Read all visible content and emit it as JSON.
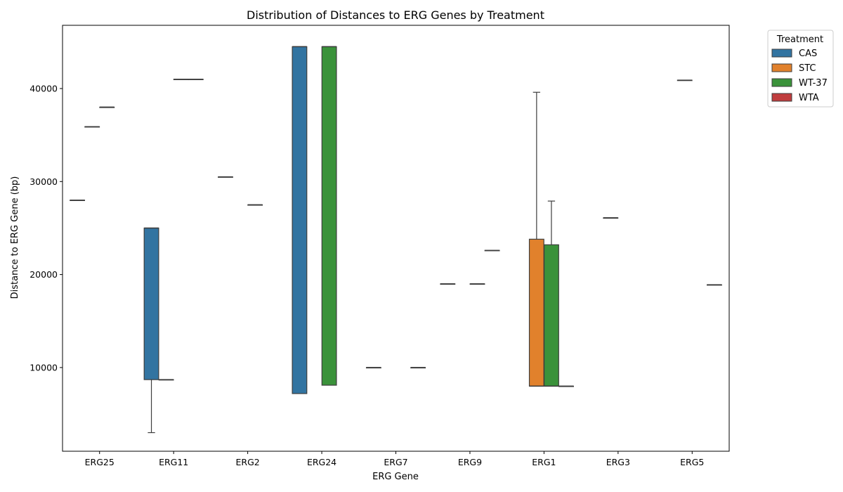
{
  "chart_data": {
    "type": "box",
    "title": "Distribution of Distances to ERG Genes by Treatment",
    "xlabel": "ERG Gene",
    "ylabel": "Distance to ERG Gene (bp)",
    "categories": [
      "ERG25",
      "ERG11",
      "ERG2",
      "ERG24",
      "ERG7",
      "ERG9",
      "ERG1",
      "ERG3",
      "ERG5"
    ],
    "yticks": [
      10000,
      20000,
      30000,
      40000
    ],
    "ylim": [
      1000,
      46800
    ],
    "grid": false,
    "legend": {
      "title": "Treatment",
      "placement": "outside-top-right",
      "entries": [
        {
          "name": "CAS",
          "color": "#3274a1"
        },
        {
          "name": "STC",
          "color": "#e1812c"
        },
        {
          "name": "WT-37",
          "color": "#3a923a"
        },
        {
          "name": "WTA",
          "color": "#c03d3e"
        }
      ]
    },
    "series": [
      {
        "name": "CAS",
        "color": "#3274a1",
        "boxes": [
          {
            "category": "ERG25",
            "min": 28000,
            "q1": 28000,
            "median": 28000,
            "q3": 28000,
            "max": 28000
          },
          {
            "category": "ERG11",
            "min": 3000,
            "q1": 8700,
            "median": 25000,
            "q3": 25000,
            "max": 25000
          },
          {
            "category": "ERG2",
            "min": 30500,
            "q1": 30500,
            "median": 30500,
            "q3": 30500,
            "max": 30500
          },
          {
            "category": "ERG24",
            "min": 7200,
            "q1": 7200,
            "median": 44500,
            "q3": 44500,
            "max": 44500
          },
          {
            "category": "ERG7",
            "min": 10000,
            "q1": 10000,
            "median": 10000,
            "q3": 10000,
            "max": 10000
          },
          {
            "category": "ERG9",
            "min": 19000,
            "q1": 19000,
            "median": 19000,
            "q3": 19000,
            "max": 19000
          }
        ]
      },
      {
        "name": "STC",
        "color": "#e1812c",
        "boxes": [
          {
            "category": "ERG25",
            "min": 35900,
            "q1": 35900,
            "median": 35900,
            "q3": 35900,
            "max": 35900
          },
          {
            "category": "ERG11",
            "min": 8700,
            "q1": 8700,
            "median": 8700,
            "q3": 8700,
            "max": 8700
          },
          {
            "category": "ERG1",
            "min": 8000,
            "q1": 8000,
            "median": 8000,
            "q3": 23800,
            "max": 39600
          },
          {
            "category": "ERG3",
            "min": 26100,
            "q1": 26100,
            "median": 26100,
            "q3": 26100,
            "max": 26100
          },
          {
            "category": "ERG5",
            "min": 40900,
            "q1": 40900,
            "median": 40900,
            "q3": 40900,
            "max": 40900
          }
        ]
      },
      {
        "name": "WT-37",
        "color": "#3a923a",
        "boxes": [
          {
            "category": "ERG25",
            "min": 38000,
            "q1": 38000,
            "median": 38000,
            "q3": 38000,
            "max": 38000
          },
          {
            "category": "ERG11",
            "min": 41000,
            "q1": 41000,
            "median": 41000,
            "q3": 41000,
            "max": 41000
          },
          {
            "category": "ERG2",
            "min": 27500,
            "q1": 27500,
            "median": 27500,
            "q3": 27500,
            "max": 27500
          },
          {
            "category": "ERG24",
            "min": 8100,
            "q1": 8100,
            "median": 44500,
            "q3": 44500,
            "max": 44500
          },
          {
            "category": "ERG9",
            "min": 19000,
            "q1": 19000,
            "median": 19000,
            "q3": 19000,
            "max": 19000
          },
          {
            "category": "ERG1",
            "min": 8000,
            "q1": 8000,
            "median": 8000,
            "q3": 23200,
            "max": 27900
          }
        ]
      },
      {
        "name": "WTA",
        "color": "#c03d3e",
        "boxes": [
          {
            "category": "ERG11",
            "min": 41000,
            "q1": 41000,
            "median": 41000,
            "q3": 41000,
            "max": 41000
          },
          {
            "category": "ERG7",
            "min": 10000,
            "q1": 10000,
            "median": 10000,
            "q3": 10000,
            "max": 10000
          },
          {
            "category": "ERG9",
            "min": 22600,
            "q1": 22600,
            "median": 22600,
            "q3": 22600,
            "max": 22600
          },
          {
            "category": "ERG1",
            "min": 8000,
            "q1": 8000,
            "median": 8000,
            "q3": 8000,
            "max": 8000
          },
          {
            "category": "ERG5",
            "min": 18900,
            "q1": 18900,
            "median": 18900,
            "q3": 18900,
            "max": 18900
          }
        ]
      }
    ]
  }
}
